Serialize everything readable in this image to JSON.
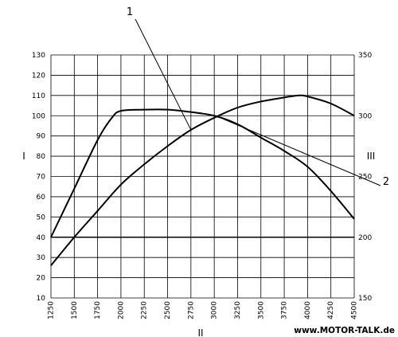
{
  "chart_data": {
    "type": "line",
    "xlabel": "II",
    "ylabel": "I",
    "y2label": "III",
    "x_ticks": [
      "1250",
      "1500",
      "1750",
      "2000",
      "2250",
      "2500",
      "2750",
      "3000",
      "3250",
      "3500",
      "3750",
      "4000",
      "4250",
      "4500"
    ],
    "y_ticks": [
      "10",
      "20",
      "30",
      "40",
      "50",
      "60",
      "70",
      "80",
      "90",
      "100",
      "110",
      "120",
      "130"
    ],
    "y2_ticks": [
      "150",
      "200",
      "250",
      "300",
      "350"
    ],
    "xlim": [
      1250,
      4500
    ],
    "ylim": [
      10,
      130
    ],
    "y2lim": [
      150,
      350
    ],
    "grid": true,
    "series": [
      {
        "name": "1",
        "axis": "left",
        "x": [
          1250,
          1500,
          1750,
          2000,
          2250,
          2500,
          2750,
          3000,
          3250,
          3500,
          3750,
          3900,
          4000,
          4250,
          4500
        ],
        "y": [
          26,
          40,
          53,
          66,
          76,
          85,
          93,
          99,
          104,
          107,
          109,
          110,
          109.5,
          106,
          100
        ]
      },
      {
        "name": "2",
        "axis": "right",
        "x": [
          1250,
          1500,
          1750,
          1900,
          2000,
          2250,
          2500,
          2750,
          3000,
          3250,
          3500,
          3750,
          4000,
          4250,
          4500
        ],
        "y": [
          200,
          240,
          280,
          298,
          304,
          305,
          305,
          303,
          300,
          293,
          282,
          271,
          258,
          238,
          215
        ]
      }
    ],
    "reference_line": {
      "axis": "right",
      "y": 200
    },
    "annotations": [
      {
        "label": "1",
        "series": 0,
        "x": 2750
      },
      {
        "label": "2",
        "series": 1,
        "x": 3100
      }
    ]
  },
  "watermark": "www.MOTOR-TALK.de"
}
